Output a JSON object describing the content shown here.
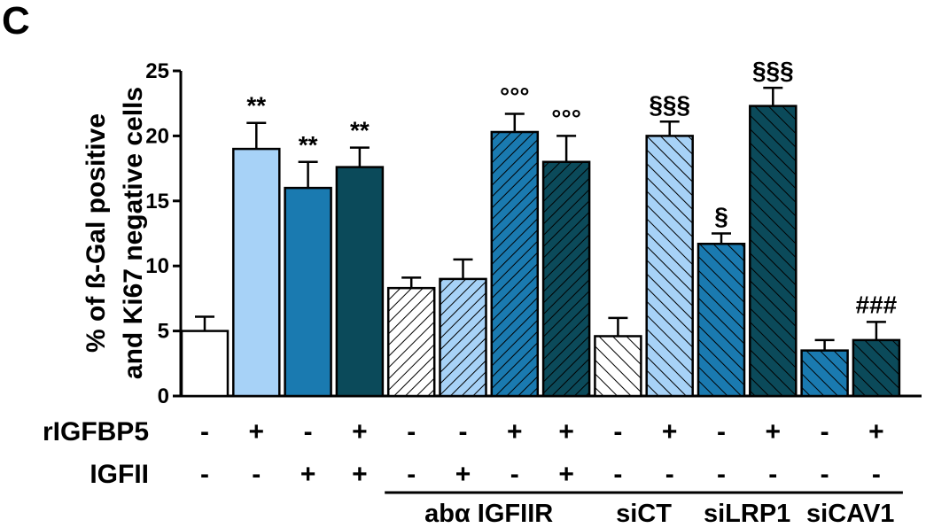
{
  "panel_label": "C",
  "chart_data": {
    "type": "bar",
    "ylabel_line1": "% of ß-Gal positive",
    "ylabel_line2": "and Ki67 negative cells",
    "ylim": [
      0,
      25
    ],
    "yticks": [
      0,
      5,
      10,
      15,
      20,
      25
    ],
    "values": [
      5.0,
      19.0,
      16.0,
      17.6,
      8.3,
      9.0,
      20.3,
      18.0,
      4.6,
      20.0,
      11.7,
      22.3,
      3.5,
      4.3
    ],
    "errors": [
      1.1,
      2.0,
      2.0,
      1.5,
      0.8,
      1.5,
      1.4,
      2.0,
      1.4,
      1.1,
      0.8,
      1.4,
      0.8,
      1.4
    ],
    "annotations": [
      "",
      "**",
      "**",
      "**",
      "",
      "",
      "°°°",
      "°°°",
      "",
      "§§§",
      "§",
      "§§§",
      "",
      "###"
    ],
    "fills": [
      "#ffffff",
      "#a7d2f7",
      "#1a7ab0",
      "#0b4a5a",
      "#ffffff",
      "#a7d2f7",
      "#1a7ab0",
      "#0b4a5a",
      "#ffffff",
      "#a7d2f7",
      "#1a7ab0",
      "#0b4a5a",
      "#1a7ab0",
      "#0b4a5a"
    ],
    "patterns": [
      "none",
      "none",
      "none",
      "none",
      "diag",
      "diag",
      "diag",
      "diag",
      "back",
      "back",
      "back",
      "back",
      "back",
      "back"
    ],
    "rows": [
      {
        "label": "rIGFBP5",
        "signs": [
          "-",
          "+",
          "-",
          "+",
          "-",
          "-",
          "+",
          "+",
          "-",
          "+",
          "-",
          "+",
          "-",
          "+"
        ]
      },
      {
        "label": "IGFII",
        "signs": [
          "-",
          "-",
          "+",
          "+",
          "-",
          "+",
          "-",
          "+",
          "-",
          "-",
          "-",
          "-",
          "-",
          "-"
        ]
      }
    ],
    "groups": [
      {
        "label": "abα IGFIIR",
        "start": 4,
        "end": 7
      },
      {
        "label": "siCT",
        "start": 8,
        "end": 9
      },
      {
        "label": "siLRP1",
        "start": 10,
        "end": 11
      },
      {
        "label": "siCAV1",
        "start": 12,
        "end": 13
      }
    ]
  }
}
